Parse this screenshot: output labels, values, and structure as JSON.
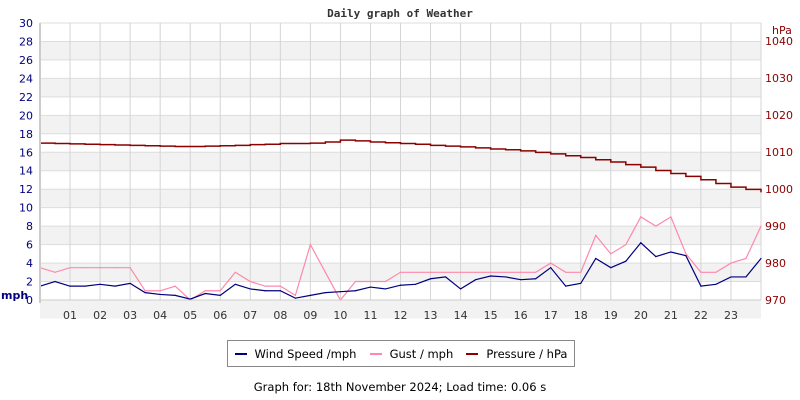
{
  "chart_data": {
    "type": "line",
    "title": "Daily graph of Weather",
    "xlabel": "",
    "ylabel": "mph",
    "y2label": "hPa",
    "xlim": [
      0,
      24
    ],
    "ylim": [
      0,
      30
    ],
    "y2lim": [
      970,
      1045
    ],
    "x_tick_labels": [
      "01",
      "02",
      "03",
      "04",
      "05",
      "06",
      "07",
      "08",
      "09",
      "10",
      "11",
      "12",
      "13",
      "14",
      "15",
      "16",
      "17",
      "18",
      "19",
      "20",
      "21",
      "22",
      "23"
    ],
    "y_tick_labels": [
      "0",
      "2",
      "4",
      "6",
      "8",
      "10",
      "12",
      "14",
      "16",
      "18",
      "20",
      "22",
      "24",
      "26",
      "28",
      "30"
    ],
    "y2_tick_labels": [
      "970",
      "980",
      "990",
      "1000",
      "1010",
      "1020",
      "1030",
      "1040"
    ],
    "grid": true,
    "legend_position": "bottom",
    "x": [
      0,
      0.5,
      1,
      1.5,
      2,
      2.5,
      3,
      3.5,
      4,
      4.5,
      5,
      5.5,
      6,
      6.5,
      7,
      7.5,
      8,
      8.5,
      9,
      9.5,
      10,
      10.5,
      11,
      11.5,
      12,
      12.5,
      13,
      13.5,
      14,
      14.5,
      15,
      15.5,
      16,
      16.5,
      17,
      17.5,
      18,
      18.5,
      19,
      19.5,
      20,
      20.5,
      21,
      21.5,
      22,
      22.5,
      23,
      23.5,
      24
    ],
    "series": [
      {
        "name": "Wind Speed /mph",
        "axis": "left",
        "color": "#000080",
        "values": [
          1.5,
          2,
          1.5,
          1.5,
          1.7,
          1.5,
          1.8,
          0.8,
          0.6,
          0.5,
          0.1,
          0.7,
          0.5,
          1.7,
          1.2,
          1,
          1,
          0.2,
          0.5,
          0.8,
          0.9,
          1,
          1.4,
          1.2,
          1.6,
          1.7,
          2.3,
          2.5,
          1.2,
          2.2,
          2.6,
          2.5,
          2.2,
          2.3,
          3.5,
          1.5,
          1.8,
          4.5,
          3.5,
          4.2,
          6.2,
          4.7,
          5.2,
          4.8,
          1.5,
          1.7,
          2.5,
          2.5,
          4.5
        ]
      },
      {
        "name": "Gust / mph",
        "axis": "left",
        "color": "#ff88aa",
        "values": [
          3.5,
          3,
          3.5,
          3.5,
          3.5,
          3.5,
          3.5,
          1,
          1,
          1.5,
          0,
          1,
          1,
          3,
          2,
          1.5,
          1.5,
          0.5,
          6,
          3,
          0,
          2,
          2,
          2,
          3,
          3,
          3,
          3,
          3,
          3,
          3,
          3,
          3,
          3,
          4,
          3,
          3,
          7,
          5,
          6,
          9,
          8,
          9,
          5,
          3,
          3,
          4,
          4.5,
          8
        ]
      },
      {
        "name": "Pressure / hPa",
        "axis": "right",
        "color": "#8b0000",
        "values": [
          1012.4,
          1012.3,
          1012.2,
          1012.1,
          1012,
          1011.9,
          1011.8,
          1011.7,
          1011.6,
          1011.5,
          1011.5,
          1011.6,
          1011.7,
          1011.8,
          1012,
          1012.1,
          1012.3,
          1012.3,
          1012.4,
          1012.7,
          1013.2,
          1013,
          1012.7,
          1012.5,
          1012.3,
          1012.1,
          1011.8,
          1011.6,
          1011.4,
          1011.1,
          1010.8,
          1010.6,
          1010.3,
          1009.9,
          1009.5,
          1009,
          1008.5,
          1007.9,
          1007.3,
          1006.6,
          1005.9,
          1005,
          1004.2,
          1003.4,
          1002.5,
          1001.5,
          1000.5,
          999.9,
          999.2
        ]
      }
    ]
  },
  "footer": "Graph for: 18th November 2024; Load time: 0.06 s"
}
